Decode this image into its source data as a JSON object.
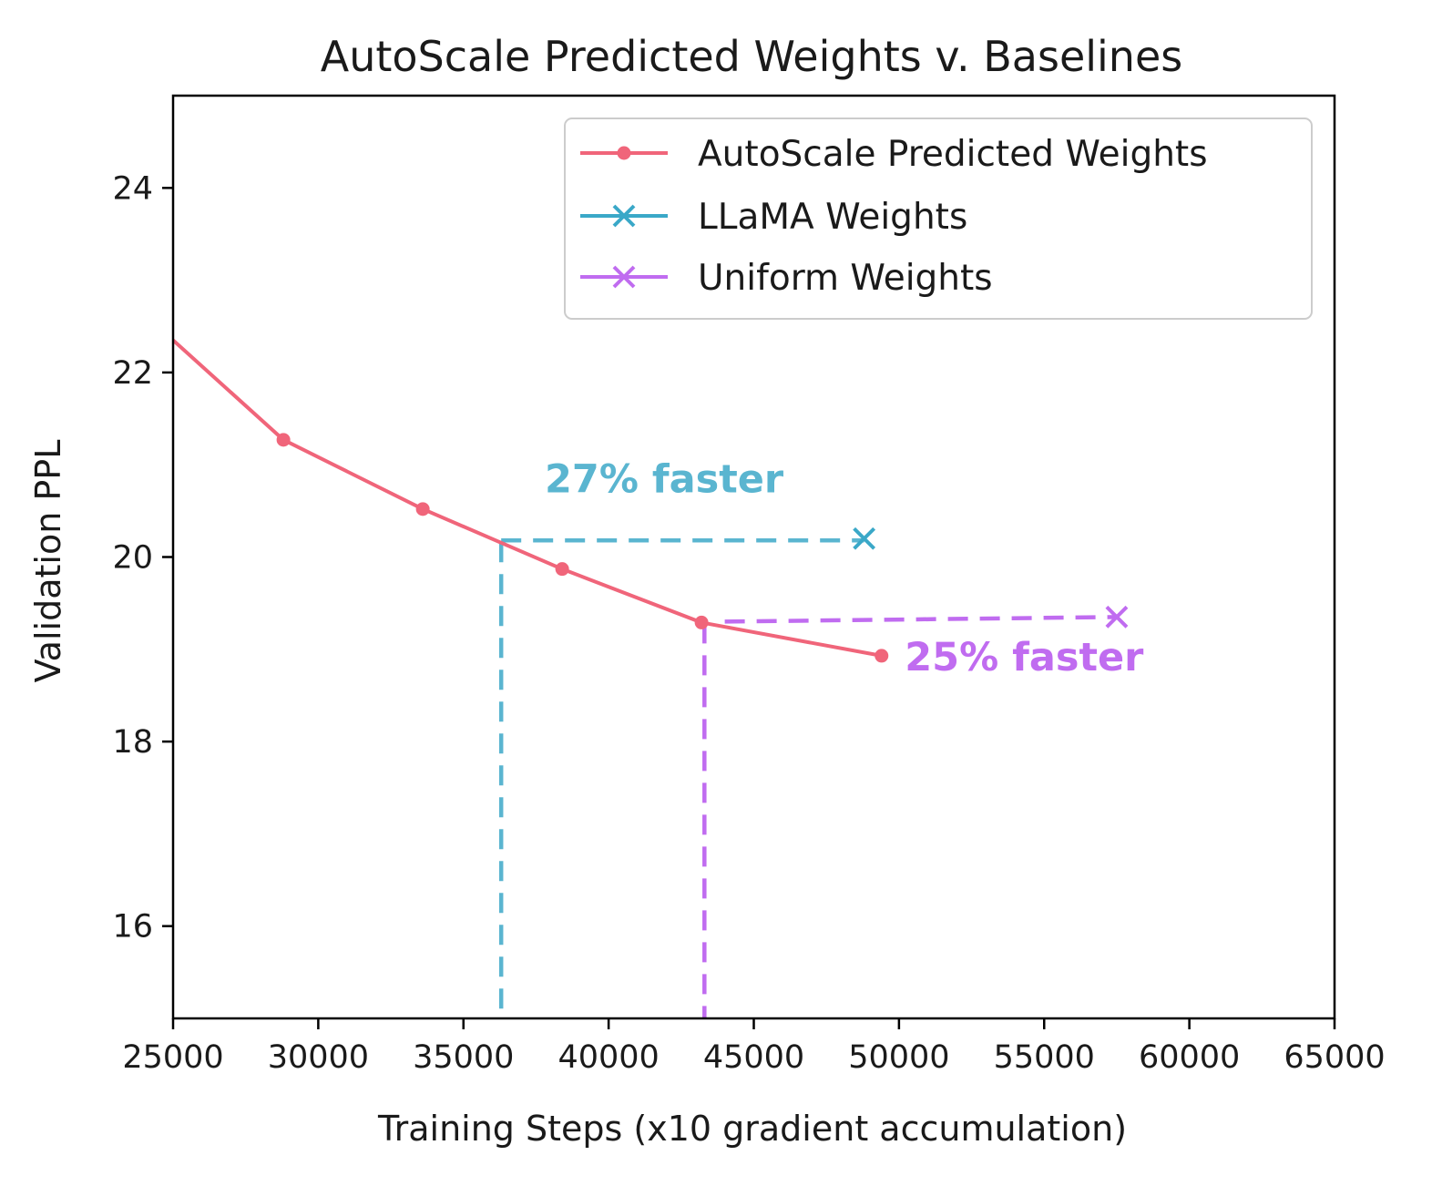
{
  "chart_data": {
    "type": "line",
    "title": "AutoScale Predicted Weights v. Baselines",
    "xlabel": "Training Steps (x10 gradient accumulation)",
    "ylabel": "Validation PPL",
    "xlim": [
      25000,
      65000
    ],
    "ylim": [
      15,
      25
    ],
    "xticks": [
      25000,
      30000,
      35000,
      40000,
      45000,
      50000,
      55000,
      60000,
      65000
    ],
    "yticks": [
      16,
      18,
      20,
      22,
      24
    ],
    "grid": false,
    "legend_position": "top-right",
    "colors": {
      "autoscale": "#f0657a",
      "llama": "#3aa8c8",
      "uniform": "#c06cf0",
      "llama_annotation": "#5ab5d0",
      "uniform_annotation": "#c06cf0"
    },
    "series": [
      {
        "name": "AutoScale Predicted Weights",
        "marker": "dot",
        "x": [
          25000,
          28800,
          33600,
          38400,
          43200,
          49400
        ],
        "y": [
          22.35,
          21.27,
          20.52,
          19.87,
          19.29,
          18.93
        ]
      },
      {
        "name": "LLaMA Weights",
        "marker": "x",
        "x": [
          48800
        ],
        "y": [
          20.2
        ]
      },
      {
        "name": "Uniform Weights",
        "marker": "x",
        "x": [
          57500
        ],
        "y": [
          19.35
        ]
      }
    ],
    "reference_lines": [
      {
        "series": "LLaMA Weights",
        "style": "dashed",
        "from": [
          36300,
          20.18
        ],
        "to": [
          48800,
          20.18
        ],
        "drop_to_axis_at_x": 36300
      },
      {
        "series": "Uniform Weights",
        "style": "dashed",
        "from": [
          44000,
          19.3
        ],
        "to": [
          57500,
          19.35
        ],
        "drop_to_axis_at_x": 43300
      }
    ],
    "annotations": [
      {
        "text": "27% faster",
        "series": "LLaMA Weights",
        "x": 37800,
        "y": 20.7
      },
      {
        "text": "25% faster",
        "series": "Uniform Weights",
        "x": 50200,
        "y": 18.77
      }
    ]
  }
}
